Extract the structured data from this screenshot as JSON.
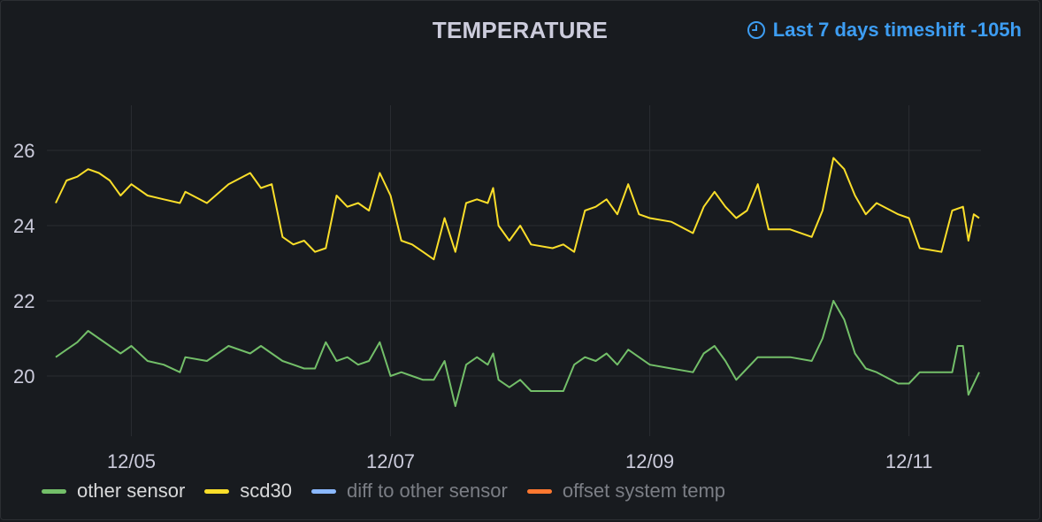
{
  "panel": {
    "title": "TEMPERATURE",
    "timeshift_label": "Last 7 days timeshift -105h",
    "timeshift_icon": "clock-icon",
    "timeshift_color": "#3d9df2"
  },
  "legend": [
    {
      "name": "other sensor",
      "color": "#73bf69",
      "visible": true
    },
    {
      "name": "scd30",
      "color": "#fade2a",
      "visible": true
    },
    {
      "name": "diff to other sensor",
      "color": "#8ab8ff",
      "visible": false
    },
    {
      "name": "offset system temp",
      "color": "#ff7830",
      "visible": false
    }
  ],
  "chart_data": {
    "type": "line",
    "title": "TEMPERATURE",
    "xlabel": "",
    "ylabel": "",
    "x_range": [
      "12/04 10:00",
      "12/11 13:00"
    ],
    "ylim": [
      18.4,
      27.2
    ],
    "y_ticks": [
      20,
      22,
      24,
      26
    ],
    "x_ticks": [
      "12/05",
      "12/07",
      "12/09",
      "12/11"
    ],
    "grid": true,
    "legend_position": "bottom-left",
    "series": [
      {
        "name": "scd30",
        "color": "#fade2a",
        "points": [
          [
            "12/04 10:00",
            24.6
          ],
          [
            "12/04 12:00",
            25.2
          ],
          [
            "12/04 14:00",
            25.3
          ],
          [
            "12/04 16:00",
            25.5
          ],
          [
            "12/04 18:00",
            25.4
          ],
          [
            "12/04 20:00",
            25.2
          ],
          [
            "12/04 22:00",
            24.8
          ],
          [
            "12/05 00:00",
            25.1
          ],
          [
            "12/05 03:00",
            24.8
          ],
          [
            "12/05 06:00",
            24.7
          ],
          [
            "12/05 09:00",
            24.6
          ],
          [
            "12/05 10:00",
            24.9
          ],
          [
            "12/05 14:00",
            24.6
          ],
          [
            "12/05 18:00",
            25.1
          ],
          [
            "12/05 22:00",
            25.4
          ],
          [
            "12/06 00:00",
            25.0
          ],
          [
            "12/06 02:00",
            25.1
          ],
          [
            "12/06 04:00",
            23.7
          ],
          [
            "12/06 06:00",
            23.5
          ],
          [
            "12/06 08:00",
            23.6
          ],
          [
            "12/06 10:00",
            23.3
          ],
          [
            "12/06 12:00",
            23.4
          ],
          [
            "12/06 14:00",
            24.8
          ],
          [
            "12/06 16:00",
            24.5
          ],
          [
            "12/06 18:00",
            24.6
          ],
          [
            "12/06 20:00",
            24.4
          ],
          [
            "12/06 22:00",
            25.4
          ],
          [
            "12/07 00:00",
            24.8
          ],
          [
            "12/07 02:00",
            23.6
          ],
          [
            "12/07 04:00",
            23.5
          ],
          [
            "12/07 06:00",
            23.3
          ],
          [
            "12/07 08:00",
            23.1
          ],
          [
            "12/07 10:00",
            24.2
          ],
          [
            "12/07 12:00",
            23.3
          ],
          [
            "12/07 14:00",
            24.6
          ],
          [
            "12/07 16:00",
            24.7
          ],
          [
            "12/07 18:00",
            24.6
          ],
          [
            "12/07 19:00",
            25.0
          ],
          [
            "12/07 20:00",
            24.0
          ],
          [
            "12/07 22:00",
            23.6
          ],
          [
            "12/08 00:00",
            24.0
          ],
          [
            "12/08 02:00",
            23.5
          ],
          [
            "12/08 06:00",
            23.4
          ],
          [
            "12/08 08:00",
            23.5
          ],
          [
            "12/08 10:00",
            23.3
          ],
          [
            "12/08 12:00",
            24.4
          ],
          [
            "12/08 14:00",
            24.5
          ],
          [
            "12/08 16:00",
            24.7
          ],
          [
            "12/08 18:00",
            24.3
          ],
          [
            "12/08 20:00",
            25.1
          ],
          [
            "12/08 22:00",
            24.3
          ],
          [
            "12/09 00:00",
            24.2
          ],
          [
            "12/09 04:00",
            24.1
          ],
          [
            "12/09 08:00",
            23.8
          ],
          [
            "12/09 10:00",
            24.5
          ],
          [
            "12/09 12:00",
            24.9
          ],
          [
            "12/09 14:00",
            24.5
          ],
          [
            "12/09 16:00",
            24.2
          ],
          [
            "12/09 18:00",
            24.4
          ],
          [
            "12/09 20:00",
            25.1
          ],
          [
            "12/09 22:00",
            23.9
          ],
          [
            "12/10 02:00",
            23.9
          ],
          [
            "12/10 06:00",
            23.7
          ],
          [
            "12/10 08:00",
            24.4
          ],
          [
            "12/10 10:00",
            25.8
          ],
          [
            "12/10 12:00",
            25.5
          ],
          [
            "12/10 14:00",
            24.8
          ],
          [
            "12/10 16:00",
            24.3
          ],
          [
            "12/10 18:00",
            24.6
          ],
          [
            "12/10 22:00",
            24.3
          ],
          [
            "12/11 00:00",
            24.2
          ],
          [
            "12/11 02:00",
            23.4
          ],
          [
            "12/11 06:00",
            23.3
          ],
          [
            "12/11 08:00",
            24.4
          ],
          [
            "12/11 10:00",
            24.5
          ],
          [
            "12/11 11:00",
            23.6
          ],
          [
            "12/11 12:00",
            24.3
          ],
          [
            "12/11 13:00",
            24.2
          ]
        ]
      },
      {
        "name": "other sensor",
        "color": "#73bf69",
        "points": [
          [
            "12/04 10:00",
            20.5
          ],
          [
            "12/04 12:00",
            20.7
          ],
          [
            "12/04 14:00",
            20.9
          ],
          [
            "12/04 16:00",
            21.2
          ],
          [
            "12/04 18:00",
            21.0
          ],
          [
            "12/04 20:00",
            20.8
          ],
          [
            "12/04 22:00",
            20.6
          ],
          [
            "12/05 00:00",
            20.8
          ],
          [
            "12/05 03:00",
            20.4
          ],
          [
            "12/05 06:00",
            20.3
          ],
          [
            "12/05 09:00",
            20.1
          ],
          [
            "12/05 10:00",
            20.5
          ],
          [
            "12/05 14:00",
            20.4
          ],
          [
            "12/05 18:00",
            20.8
          ],
          [
            "12/05 22:00",
            20.6
          ],
          [
            "12/06 00:00",
            20.8
          ],
          [
            "12/06 02:00",
            20.6
          ],
          [
            "12/06 04:00",
            20.4
          ],
          [
            "12/06 06:00",
            20.3
          ],
          [
            "12/06 08:00",
            20.2
          ],
          [
            "12/06 10:00",
            20.2
          ],
          [
            "12/06 12:00",
            20.9
          ],
          [
            "12/06 14:00",
            20.4
          ],
          [
            "12/06 16:00",
            20.5
          ],
          [
            "12/06 18:00",
            20.3
          ],
          [
            "12/06 20:00",
            20.4
          ],
          [
            "12/06 22:00",
            20.9
          ],
          [
            "12/07 00:00",
            20.0
          ],
          [
            "12/07 02:00",
            20.1
          ],
          [
            "12/07 04:00",
            20.0
          ],
          [
            "12/07 06:00",
            19.9
          ],
          [
            "12/07 08:00",
            19.9
          ],
          [
            "12/07 10:00",
            20.4
          ],
          [
            "12/07 12:00",
            19.2
          ],
          [
            "12/07 14:00",
            20.3
          ],
          [
            "12/07 16:00",
            20.5
          ],
          [
            "12/07 18:00",
            20.3
          ],
          [
            "12/07 19:00",
            20.6
          ],
          [
            "12/07 20:00",
            19.9
          ],
          [
            "12/07 22:00",
            19.7
          ],
          [
            "12/08 00:00",
            19.9
          ],
          [
            "12/08 02:00",
            19.6
          ],
          [
            "12/08 06:00",
            19.6
          ],
          [
            "12/08 08:00",
            19.6
          ],
          [
            "12/08 10:00",
            20.3
          ],
          [
            "12/08 12:00",
            20.5
          ],
          [
            "12/08 14:00",
            20.4
          ],
          [
            "12/08 16:00",
            20.6
          ],
          [
            "12/08 18:00",
            20.3
          ],
          [
            "12/08 20:00",
            20.7
          ],
          [
            "12/08 22:00",
            20.5
          ],
          [
            "12/09 00:00",
            20.3
          ],
          [
            "12/09 04:00",
            20.2
          ],
          [
            "12/09 08:00",
            20.1
          ],
          [
            "12/09 10:00",
            20.6
          ],
          [
            "12/09 12:00",
            20.8
          ],
          [
            "12/09 14:00",
            20.4
          ],
          [
            "12/09 16:00",
            19.9
          ],
          [
            "12/09 18:00",
            20.2
          ],
          [
            "12/09 20:00",
            20.5
          ],
          [
            "12/09 22:00",
            20.5
          ],
          [
            "12/10 02:00",
            20.5
          ],
          [
            "12/10 06:00",
            20.4
          ],
          [
            "12/10 08:00",
            21.0
          ],
          [
            "12/10 10:00",
            22.0
          ],
          [
            "12/10 12:00",
            21.5
          ],
          [
            "12/10 14:00",
            20.6
          ],
          [
            "12/10 16:00",
            20.2
          ],
          [
            "12/10 18:00",
            20.1
          ],
          [
            "12/10 22:00",
            19.8
          ],
          [
            "12/11 00:00",
            19.8
          ],
          [
            "12/11 02:00",
            20.1
          ],
          [
            "12/11 06:00",
            20.1
          ],
          [
            "12/11 08:00",
            20.1
          ],
          [
            "12/11 09:00",
            20.8
          ],
          [
            "12/11 10:00",
            20.8
          ],
          [
            "12/11 11:00",
            19.5
          ],
          [
            "12/11 12:00",
            19.8
          ],
          [
            "12/11 13:00",
            20.1
          ]
        ]
      }
    ]
  }
}
